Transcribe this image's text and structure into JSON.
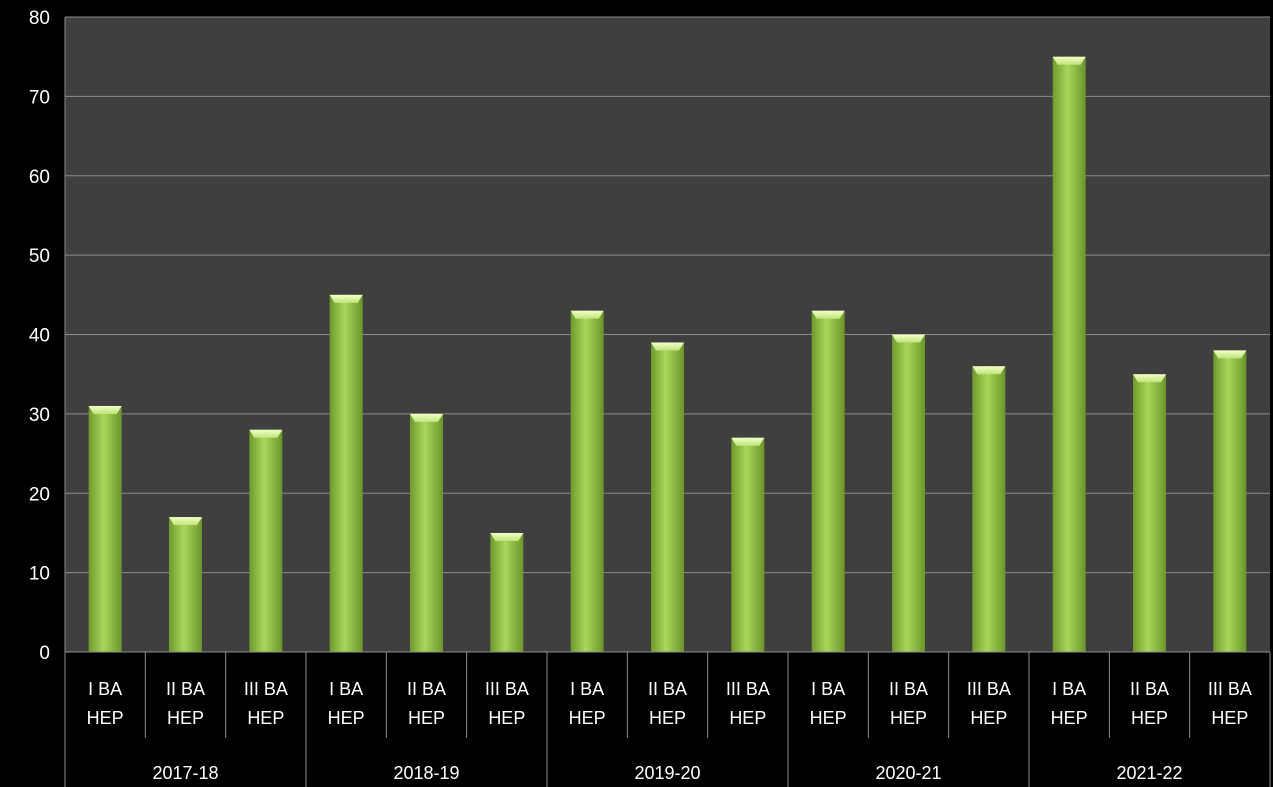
{
  "chart_data": {
    "type": "bar",
    "title": "",
    "xlabel": "",
    "ylabel": "",
    "ylim": [
      0,
      80
    ],
    "yticks": [
      "0",
      "10",
      "20",
      "30",
      "40",
      "50",
      "60",
      "70",
      "80"
    ],
    "grid": true,
    "groups": [
      {
        "label": "2017-18",
        "categories": [
          {
            "line1": "I BA",
            "line2": "HEP"
          },
          {
            "line1": "II BA",
            "line2": "HEP"
          },
          {
            "line1": "III BA",
            "line2": "HEP"
          }
        ],
        "values": [
          31,
          17,
          28
        ]
      },
      {
        "label": "2018-19",
        "categories": [
          {
            "line1": "I BA",
            "line2": "HEP"
          },
          {
            "line1": "II BA",
            "line2": "HEP"
          },
          {
            "line1": "III BA",
            "line2": "HEP"
          }
        ],
        "values": [
          45,
          30,
          15
        ]
      },
      {
        "label": "2019-20",
        "categories": [
          {
            "line1": "I BA",
            "line2": "HEP"
          },
          {
            "line1": "II BA",
            "line2": "HEP"
          },
          {
            "line1": "III BA",
            "line2": "HEP"
          }
        ],
        "values": [
          43,
          39,
          27
        ]
      },
      {
        "label": "2020-21",
        "categories": [
          {
            "line1": "I BA",
            "line2": "HEP"
          },
          {
            "line1": "II BA",
            "line2": "HEP"
          },
          {
            "line1": "III BA",
            "line2": "HEP"
          }
        ],
        "values": [
          43,
          40,
          36
        ]
      },
      {
        "label": "2021-22",
        "categories": [
          {
            "line1": "I BA",
            "line2": "HEP"
          },
          {
            "line1": "II BA",
            "line2": "HEP"
          },
          {
            "line1": "III BA",
            "line2": "HEP"
          }
        ],
        "values": [
          75,
          35,
          38
        ]
      }
    ],
    "colors": {
      "background": "#000000",
      "plot_area": "#3f3f3f",
      "gridline": "#8c8c8c",
      "bar_light": "#a8d65a",
      "bar_mid": "#8cbf3f",
      "bar_dark": "#5f8a25",
      "axis_text": "#ffffff"
    }
  }
}
